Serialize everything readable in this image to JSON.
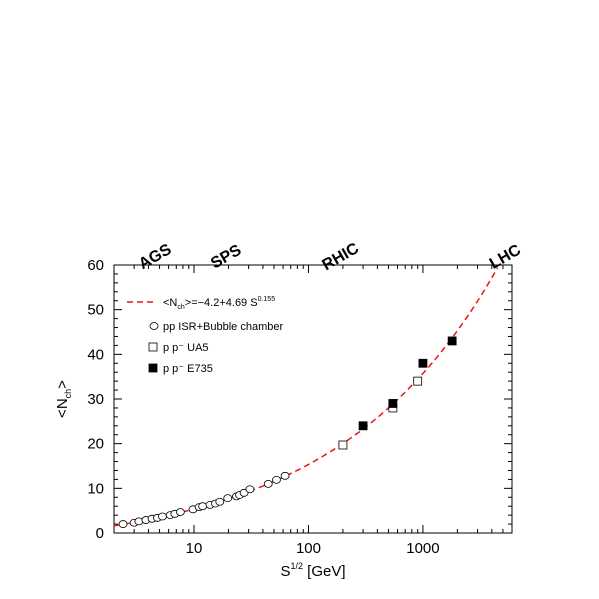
{
  "chart_data": {
    "type": "scatter",
    "xscale": "log",
    "xlim": [
      2,
      6000
    ],
    "ylim": [
      0,
      60
    ],
    "xlabel": "S",
    "xlabel_sup": "1/2",
    "xlabel_unit": "[GeV]",
    "ylabel": "<N",
    "ylabel_sub": "ch",
    "ylabel_end": ">",
    "xticks": [
      {
        "value": 10,
        "label": "10"
      },
      {
        "value": 100,
        "label": "100"
      },
      {
        "value": 1000,
        "label": "1000"
      }
    ],
    "yticks": [
      {
        "value": 0,
        "label": "0"
      },
      {
        "value": 10,
        "label": "10"
      },
      {
        "value": 20,
        "label": "20"
      },
      {
        "value": 30,
        "label": "30"
      },
      {
        "value": 40,
        "label": "40"
      },
      {
        "value": 50,
        "label": "50"
      },
      {
        "value": 60,
        "label": "60"
      }
    ],
    "energy_labels": [
      {
        "label": "AGS",
        "x": 4.8
      },
      {
        "label": "SPS",
        "x": 20
      },
      {
        "label": "RHIC",
        "x": 200
      },
      {
        "label": "LHC",
        "x": 5500
      }
    ],
    "fit": {
      "legend_prefix": "<N",
      "legend_sub": "ch",
      "legend_mid": ">=−4.2+4.69 S",
      "legend_sup": "0.155",
      "a": -4.2,
      "b": 4.69,
      "power": 0.155,
      "x_range": [
        2,
        6000
      ],
      "color": "#e8141c"
    },
    "series": [
      {
        "name": "pp  ISR+Bubble chamber",
        "marker": "circle-open",
        "x": [
          2.4,
          3.0,
          3.3,
          3.8,
          4.3,
          4.8,
          5.3,
          6.2,
          6.8,
          7.6,
          9.8,
          11.1,
          11.9,
          13.8,
          15.4,
          16.8,
          19.7,
          23.5,
          25.0,
          27.4,
          30.8,
          44.5,
          52.5,
          62.5
        ],
        "y": [
          2.0,
          2.3,
          2.6,
          2.9,
          3.2,
          3.4,
          3.7,
          4.0,
          4.3,
          4.7,
          5.3,
          5.8,
          6.0,
          6.3,
          6.6,
          7.0,
          7.8,
          8.2,
          8.5,
          9.0,
          9.8,
          11.0,
          11.9,
          12.8
        ]
      },
      {
        "name": "p p⁻  UA5",
        "marker": "square-open",
        "x": [
          200,
          546,
          900
        ],
        "y": [
          19.7,
          28.0,
          34.0
        ]
      },
      {
        "name": "p p⁻  E735",
        "marker": "square-filled",
        "x": [
          300,
          546,
          1000,
          1800
        ],
        "y": [
          24.0,
          29.0,
          38.0,
          43.0
        ]
      }
    ],
    "grid": false,
    "legend_position": "top-left"
  }
}
